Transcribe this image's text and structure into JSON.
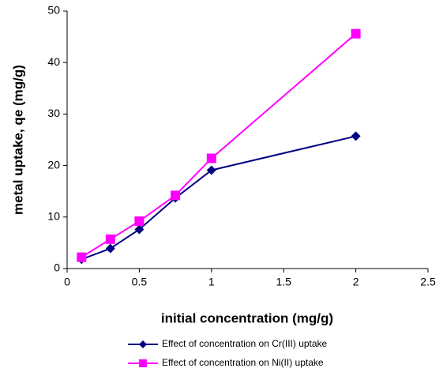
{
  "chart_data": {
    "type": "line",
    "xlabel": "initial concentration (mg/g)",
    "ylabel": "metal uptake, qe (mg/g)",
    "x": [
      0.1,
      0.3,
      0.5,
      0.75,
      1,
      2
    ],
    "series": [
      {
        "name": "Effect of concentration on Cr(III) uptake",
        "color": "#000080",
        "marker": "diamond",
        "values": [
          1.8,
          3.9,
          7.6,
          13.7,
          19.1,
          25.7
        ]
      },
      {
        "name": "Effect of concentration on Ni(II) uptake",
        "color": "#ff00ff",
        "marker": "square",
        "values": [
          2.2,
          5.7,
          9.2,
          14.2,
          21.4,
          45.6
        ]
      }
    ],
    "xlim": [
      0,
      2.5
    ],
    "xticks": [
      0,
      0.5,
      1,
      1.5,
      2,
      2.5
    ],
    "ylim": [
      0,
      50
    ],
    "yticks": [
      0,
      10,
      20,
      30,
      40,
      50
    ],
    "grid": false,
    "legend": "bottom"
  }
}
